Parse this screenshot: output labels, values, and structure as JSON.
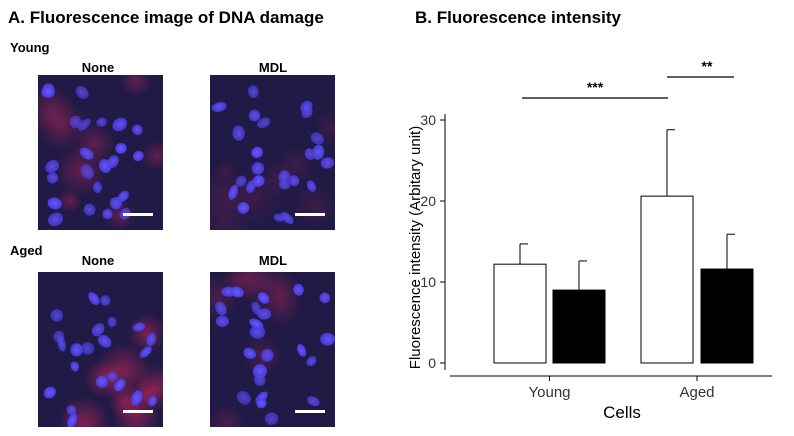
{
  "panelA": {
    "title": "A. Fluorescence image of DNA damage",
    "rows": [
      {
        "label": "Young",
        "columns": [
          "None",
          "MDL"
        ]
      },
      {
        "label": "Aged",
        "columns": [
          "None",
          "MDL"
        ]
      }
    ],
    "colors": {
      "background": "#221a46",
      "nucleus": "#4a3ae0",
      "damage": "#d8285c",
      "scale_bar": "#ffffff"
    }
  },
  "chart_data": {
    "type": "bar",
    "title": "B. Fluorescence intensity",
    "xlabel": "Cells",
    "ylabel": "Fluorescence intensity (Arbitary unit)",
    "categories": [
      "Young",
      "Aged"
    ],
    "ylim": [
      0,
      30
    ],
    "yticks": [
      0,
      10,
      20,
      30
    ],
    "series": [
      {
        "fill": "#ffffff",
        "values": [
          12.2,
          20.6
        ],
        "errors": [
          2.5,
          8.2
        ]
      },
      {
        "fill": "#000000",
        "values": [
          9.0,
          11.6
        ],
        "errors": [
          3.6,
          4.3
        ]
      }
    ],
    "significance": [
      {
        "label": "***",
        "between": "Young (white) vs Aged (white)"
      },
      {
        "label": "**",
        "between": "Aged (white) vs Aged (black)"
      }
    ],
    "grid": false,
    "legend": "none"
  }
}
